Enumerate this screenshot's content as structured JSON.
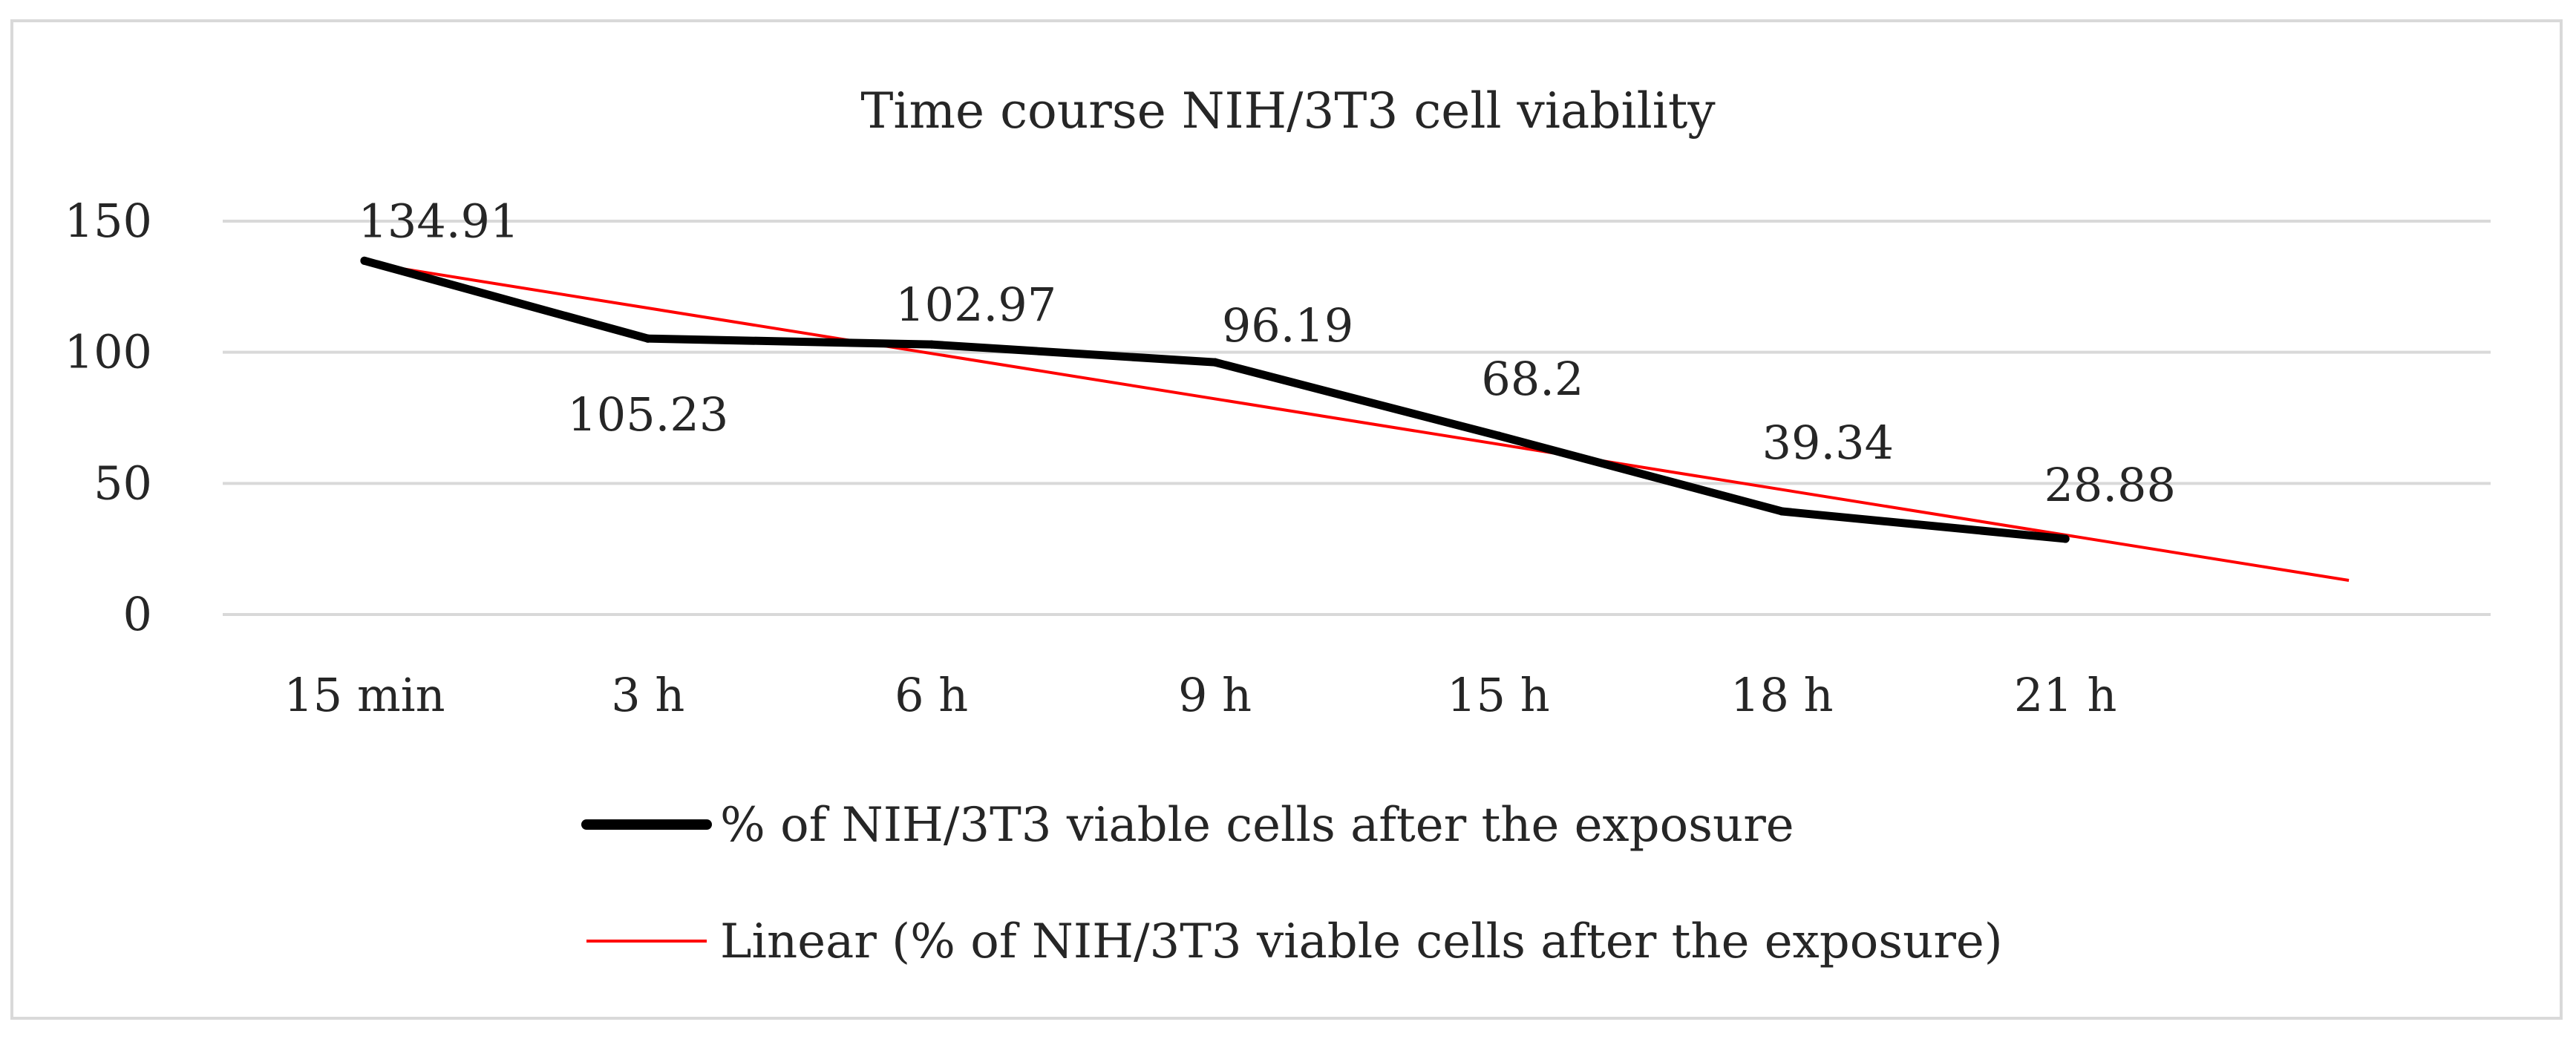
{
  "chart_data": {
    "type": "line",
    "title": "Time course NIH/3T3 cell viability",
    "categories": [
      "15 min",
      "3 h",
      "6 h",
      "9 h",
      "15 h",
      "18 h",
      "21 h"
    ],
    "ylim": [
      0,
      150
    ],
    "yticks": [
      0,
      50,
      100,
      150
    ],
    "grid": true,
    "legend_position": "bottom",
    "series": [
      {
        "name": "% of NIH/3T3 viable cells after the exposure",
        "values": [
          134.91,
          105.23,
          102.97,
          96.19,
          68.2,
          39.34,
          28.88
        ],
        "data_labels": [
          "134.91",
          "105.23",
          "102.97",
          "96.19",
          "68.2",
          "39.34",
          "28.88"
        ],
        "color": "#000000"
      }
    ],
    "trendline": {
      "name": "Linear (% of NIH/3T3 viable cells after the exposure)",
      "type": "linear",
      "forward_periods": 1,
      "color": "#ff0000"
    }
  }
}
